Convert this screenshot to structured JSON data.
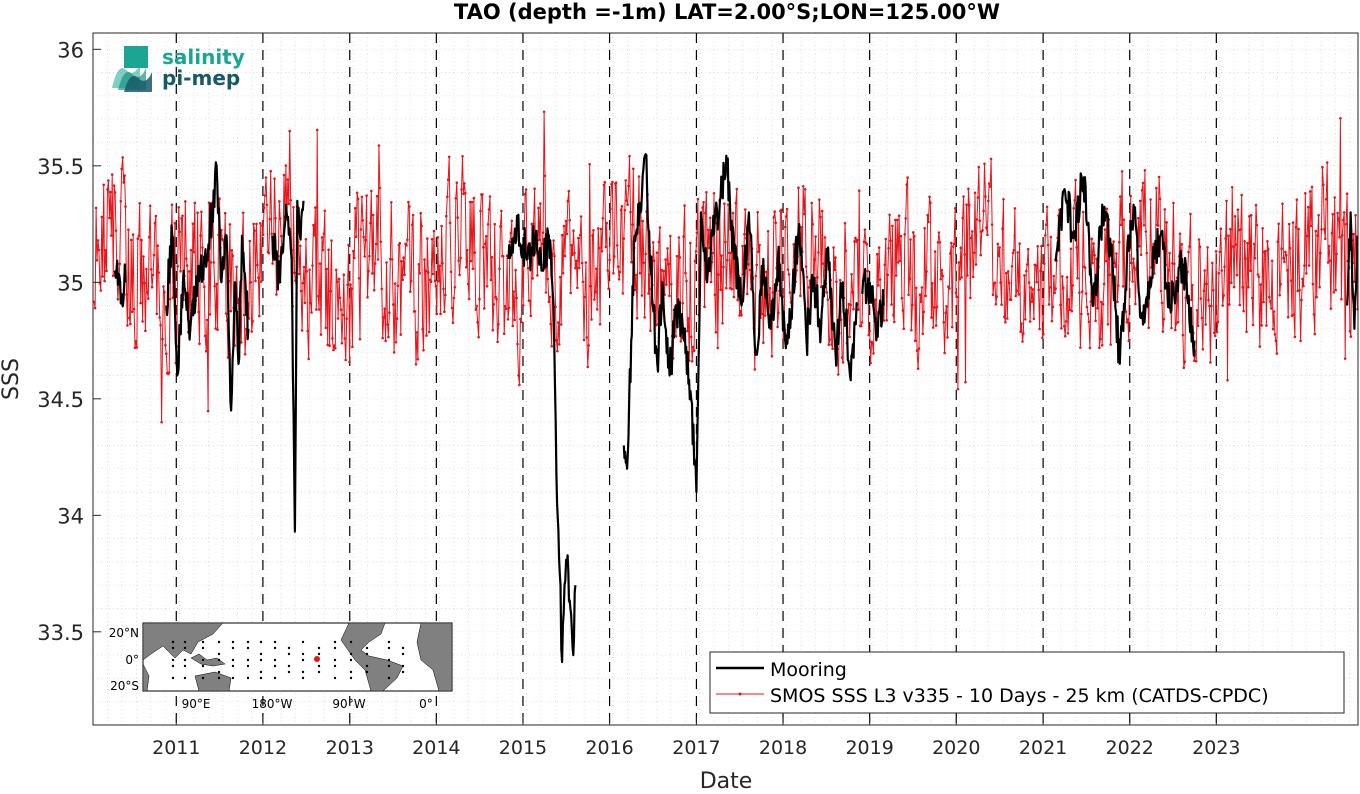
{
  "logo": {
    "line1": "salinity",
    "line2": "pi-mep",
    "color1": "#1aa692",
    "color2": "#17596b"
  },
  "inset_map": {
    "lat_labels": [
      "20°N",
      "0°",
      "20°S"
    ],
    "lon_labels": [
      "90°E",
      "180°W",
      "90°W",
      "0°"
    ],
    "marker_color": "#e8141a"
  },
  "chart_data": {
    "type": "line",
    "title": "TAO (depth =-1m) LAT=2.00°S;LON=125.00°W",
    "xlabel": "Date",
    "ylabel": "SSS",
    "xlim": [
      "2010-01-15",
      "2024-08-20"
    ],
    "ylim": [
      33.1,
      36.07
    ],
    "yticks": [
      33.5,
      34,
      34.5,
      35,
      35.5,
      36
    ],
    "ytick_labels": [
      "33.5",
      "34",
      "34.5",
      "35",
      "35.5",
      "36"
    ],
    "xtick_labels": [
      "2011",
      "2012",
      "2013",
      "2014",
      "2015",
      "2016",
      "2017",
      "2018",
      "2019",
      "2020",
      "2021",
      "2022",
      "2023"
    ],
    "xtick_dates": [
      "2011-01-01",
      "2012-01-01",
      "2013-01-01",
      "2014-01-01",
      "2015-01-01",
      "2016-01-01",
      "2017-01-01",
      "2018-01-01",
      "2019-01-01",
      "2020-01-01",
      "2021-01-01",
      "2022-01-01",
      "2023-01-01"
    ],
    "grid": "minor dotted",
    "year_markers": "dashed vertical lines at each year",
    "legend_position": "bottom-right",
    "series": [
      {
        "name": "Mooring",
        "color": "#000000",
        "style": "thick line",
        "segments": [
          {
            "x": [
              "2010-04-15",
              "2010-05-15",
              "2010-06-01"
            ],
            "y": [
              35.05,
              34.95,
              35.0
            ]
          },
          {
            "x": [
              "2010-11-20",
              "2010-12-15",
              "2011-01-05",
              "2011-02-01",
              "2011-03-01",
              "2011-04-01",
              "2011-05-01",
              "2011-06-01",
              "2011-06-20",
              "2011-07-10",
              "2011-08-01",
              "2011-08-20",
              "2011-09-05",
              "2011-09-20",
              "2011-10-05",
              "2011-11-01"
            ],
            "y": [
              34.9,
              35.2,
              34.6,
              35.05,
              34.8,
              35.0,
              35.1,
              35.3,
              35.5,
              35.0,
              35.2,
              34.45,
              35.0,
              34.65,
              35.2,
              34.8
            ]
          },
          {
            "x": [
              "2012-02-10",
              "2012-03-10",
              "2012-04-10",
              "2012-05-01",
              "2012-05-15",
              "2012-05-25",
              "2012-06-05",
              "2012-06-20"
            ],
            "y": [
              35.2,
              35.0,
              35.3,
              35.1,
              33.93,
              35.35,
              35.2,
              35.35
            ]
          },
          {
            "x": [
              "2014-11-01",
              "2014-12-10",
              "2015-01-20",
              "2015-02-20",
              "2015-03-20",
              "2015-04-20",
              "2015-05-10",
              "2015-05-25",
              "2015-06-05",
              "2015-06-15",
              "2015-06-25",
              "2015-07-05",
              "2015-07-20",
              "2015-08-01",
              "2015-08-10"
            ],
            "y": [
              35.1,
              35.25,
              35.1,
              35.2,
              35.05,
              35.2,
              34.9,
              34.05,
              33.75,
              33.37,
              33.7,
              33.8,
              33.6,
              33.4,
              33.7
            ]
          },
          {
            "x": [
              "2016-03-01",
              "2016-03-15",
              "2016-04-01",
              "2016-04-15",
              "2016-05-10",
              "2016-06-01",
              "2016-07-01",
              "2016-07-20",
              "2016-08-10",
              "2016-09-10",
              "2016-10-10",
              "2016-11-10",
              "2016-12-10",
              "2017-01-01",
              "2017-01-20",
              "2017-02-15",
              "2017-03-10",
              "2017-04-10",
              "2017-05-10",
              "2017-06-10",
              "2017-07-10",
              "2017-08-10",
              "2017-09-10",
              "2017-10-10",
              "2017-11-10",
              "2017-12-10",
              "2018-01-10",
              "2018-02-10",
              "2018-03-10",
              "2018-04-10",
              "2018-05-10",
              "2018-06-10",
              "2018-07-10",
              "2018-08-10",
              "2018-09-10",
              "2018-10-10",
              "2018-11-10"
            ],
            "y": [
              34.3,
              34.2,
              34.75,
              35.2,
              35.3,
              35.55,
              34.9,
              34.65,
              35.0,
              34.6,
              34.9,
              34.75,
              34.5,
              34.1,
              35.3,
              35.0,
              35.2,
              35.35,
              35.5,
              35.1,
              34.9,
              35.3,
              34.7,
              35.1,
              34.8,
              35.1,
              34.75,
              34.95,
              35.25,
              34.75,
              35.0,
              34.8,
              35.15,
              34.7,
              35.0,
              34.6,
              34.9
            ]
          },
          {
            "x": [
              "2018-12-01",
              "2019-01-01",
              "2019-02-01",
              "2019-03-01"
            ],
            "y": [
              34.95,
              35.0,
              34.8,
              34.9
            ]
          },
          {
            "x": [
              "2021-02-20",
              "2021-04-01",
              "2021-05-10",
              "2021-06-20",
              "2021-08-01",
              "2021-09-10",
              "2021-10-20",
              "2021-11-20",
              "2021-12-20",
              "2022-01-20",
              "2022-02-20",
              "2022-03-20",
              "2022-05-10",
              "2022-06-20",
              "2022-08-10",
              "2022-10-01"
            ],
            "y": [
              35.1,
              35.4,
              35.2,
              35.45,
              34.9,
              35.3,
              35.1,
              34.65,
              35.1,
              35.3,
              34.85,
              35.0,
              35.2,
              34.9,
              35.1,
              34.75
            ]
          },
          {
            "x": [
              "2024-07-05",
              "2024-07-20",
              "2024-08-05",
              "2024-08-18"
            ],
            "y": [
              34.9,
              35.3,
              34.8,
              35.2
            ]
          }
        ]
      },
      {
        "name": "SMOS SSS L3 v335 - 10 Days - 25 km (CATDS-CPDC)",
        "color": "#e8141a",
        "style": "thin line with point markers",
        "mean": 35.05,
        "noise_amplitude": 0.3,
        "range": [
          34.33,
          35.88
        ],
        "sampling_days": 4
      }
    ]
  }
}
